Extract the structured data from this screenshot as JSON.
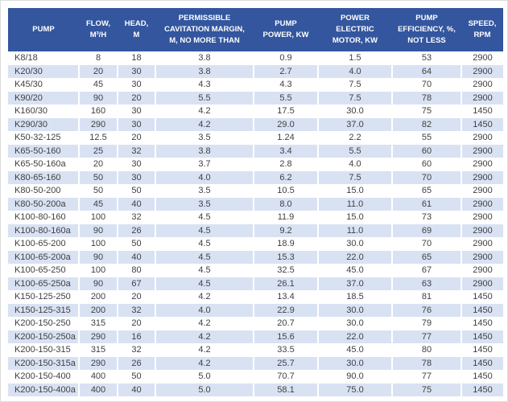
{
  "colors": {
    "header_bg": "#33569E",
    "header_text": "#FFFFFF",
    "stripe_bg": "#D9E2F3",
    "row_bg": "#FFFFFF",
    "cell_text": "#3F3F3F"
  },
  "table": {
    "column_keys": [
      "pump",
      "flow",
      "head",
      "cavitation-margin",
      "pump-power",
      "motor-power",
      "efficiency",
      "speed"
    ],
    "headers": [
      "PUMP",
      "FLOW,\nM³/H",
      "HEAD,\nM",
      "PERMISSIBLE\nCAVITATION MARGIN,\nM, NO MORE THAN",
      "PUMP\nPOWER, KW",
      "POWER\nELECTRIC\nMOTOR, KW",
      "PUMP\nEFFICIENCY, %,\nNOT LESS",
      "SPEED,\nRPM"
    ],
    "rows": [
      [
        "K8/18",
        "8",
        "18",
        "3.8",
        "0.9",
        "1.5",
        "53",
        "2900"
      ],
      [
        "K20/30",
        "20",
        "30",
        "3.8",
        "2.7",
        "4.0",
        "64",
        "2900"
      ],
      [
        "K45/30",
        "45",
        "30",
        "4.3",
        "4.3",
        "7.5",
        "70",
        "2900"
      ],
      [
        "K90/20",
        "90",
        "20",
        "5.5",
        "5.5",
        "7.5",
        "78",
        "2900"
      ],
      [
        "K160/30",
        "160",
        "30",
        "4.2",
        "17.5",
        "30.0",
        "75",
        "1450"
      ],
      [
        "K290/30",
        "290",
        "30",
        "4.2",
        "29.0",
        "37.0",
        "82",
        "1450"
      ],
      [
        "K50-32-125",
        "12.5",
        "20",
        "3.5",
        "1.24",
        "2.2",
        "55",
        "2900"
      ],
      [
        "K65-50-160",
        "25",
        "32",
        "3.8",
        "3.4",
        "5.5",
        "60",
        "2900"
      ],
      [
        "K65-50-160a",
        "20",
        "30",
        "3.7",
        "2.8",
        "4.0",
        "60",
        "2900"
      ],
      [
        "K80-65-160",
        "50",
        "30",
        "4.0",
        "6.2",
        "7.5",
        "70",
        "2900"
      ],
      [
        "K80-50-200",
        "50",
        "50",
        "3.5",
        "10.5",
        "15.0",
        "65",
        "2900"
      ],
      [
        "K80-50-200a",
        "45",
        "40",
        "3.5",
        "8.0",
        "11.0",
        "61",
        "2900"
      ],
      [
        "K100-80-160",
        "100",
        "32",
        "4.5",
        "11.9",
        "15.0",
        "73",
        "2900"
      ],
      [
        "K100-80-160a",
        "90",
        "26",
        "4.5",
        "9.2",
        "11.0",
        "69",
        "2900"
      ],
      [
        "K100-65-200",
        "100",
        "50",
        "4.5",
        "18.9",
        "30.0",
        "70",
        "2900"
      ],
      [
        "K100-65-200a",
        "90",
        "40",
        "4.5",
        "15.3",
        "22.0",
        "65",
        "2900"
      ],
      [
        "K100-65-250",
        "100",
        "80",
        "4.5",
        "32.5",
        "45.0",
        "67",
        "2900"
      ],
      [
        "K100-65-250a",
        "90",
        "67",
        "4.5",
        "26.1",
        "37.0",
        "63",
        "2900"
      ],
      [
        "K150-125-250",
        "200",
        "20",
        "4.2",
        "13.4",
        "18.5",
        "81",
        "1450"
      ],
      [
        "K150-125-315",
        "200",
        "32",
        "4.0",
        "22.9",
        "30.0",
        "76",
        "1450"
      ],
      [
        "K200-150-250",
        "315",
        "20",
        "4.2",
        "20.7",
        "30.0",
        "79",
        "1450"
      ],
      [
        "K200-150-250a",
        "290",
        "16",
        "4.2",
        "15.6",
        "22.0",
        "77",
        "1450"
      ],
      [
        "K200-150-315",
        "315",
        "32",
        "4.2",
        "33.5",
        "45.0",
        "80",
        "1450"
      ],
      [
        "K200-150-315a",
        "290",
        "26",
        "4.2",
        "25.7",
        "30.0",
        "78",
        "1450"
      ],
      [
        "K200-150-400",
        "400",
        "50",
        "5.0",
        "70.7",
        "90.0",
        "77",
        "1450"
      ],
      [
        "K200-150-400a",
        "400",
        "40",
        "5.0",
        "58.1",
        "75.0",
        "75",
        "1450"
      ]
    ]
  }
}
